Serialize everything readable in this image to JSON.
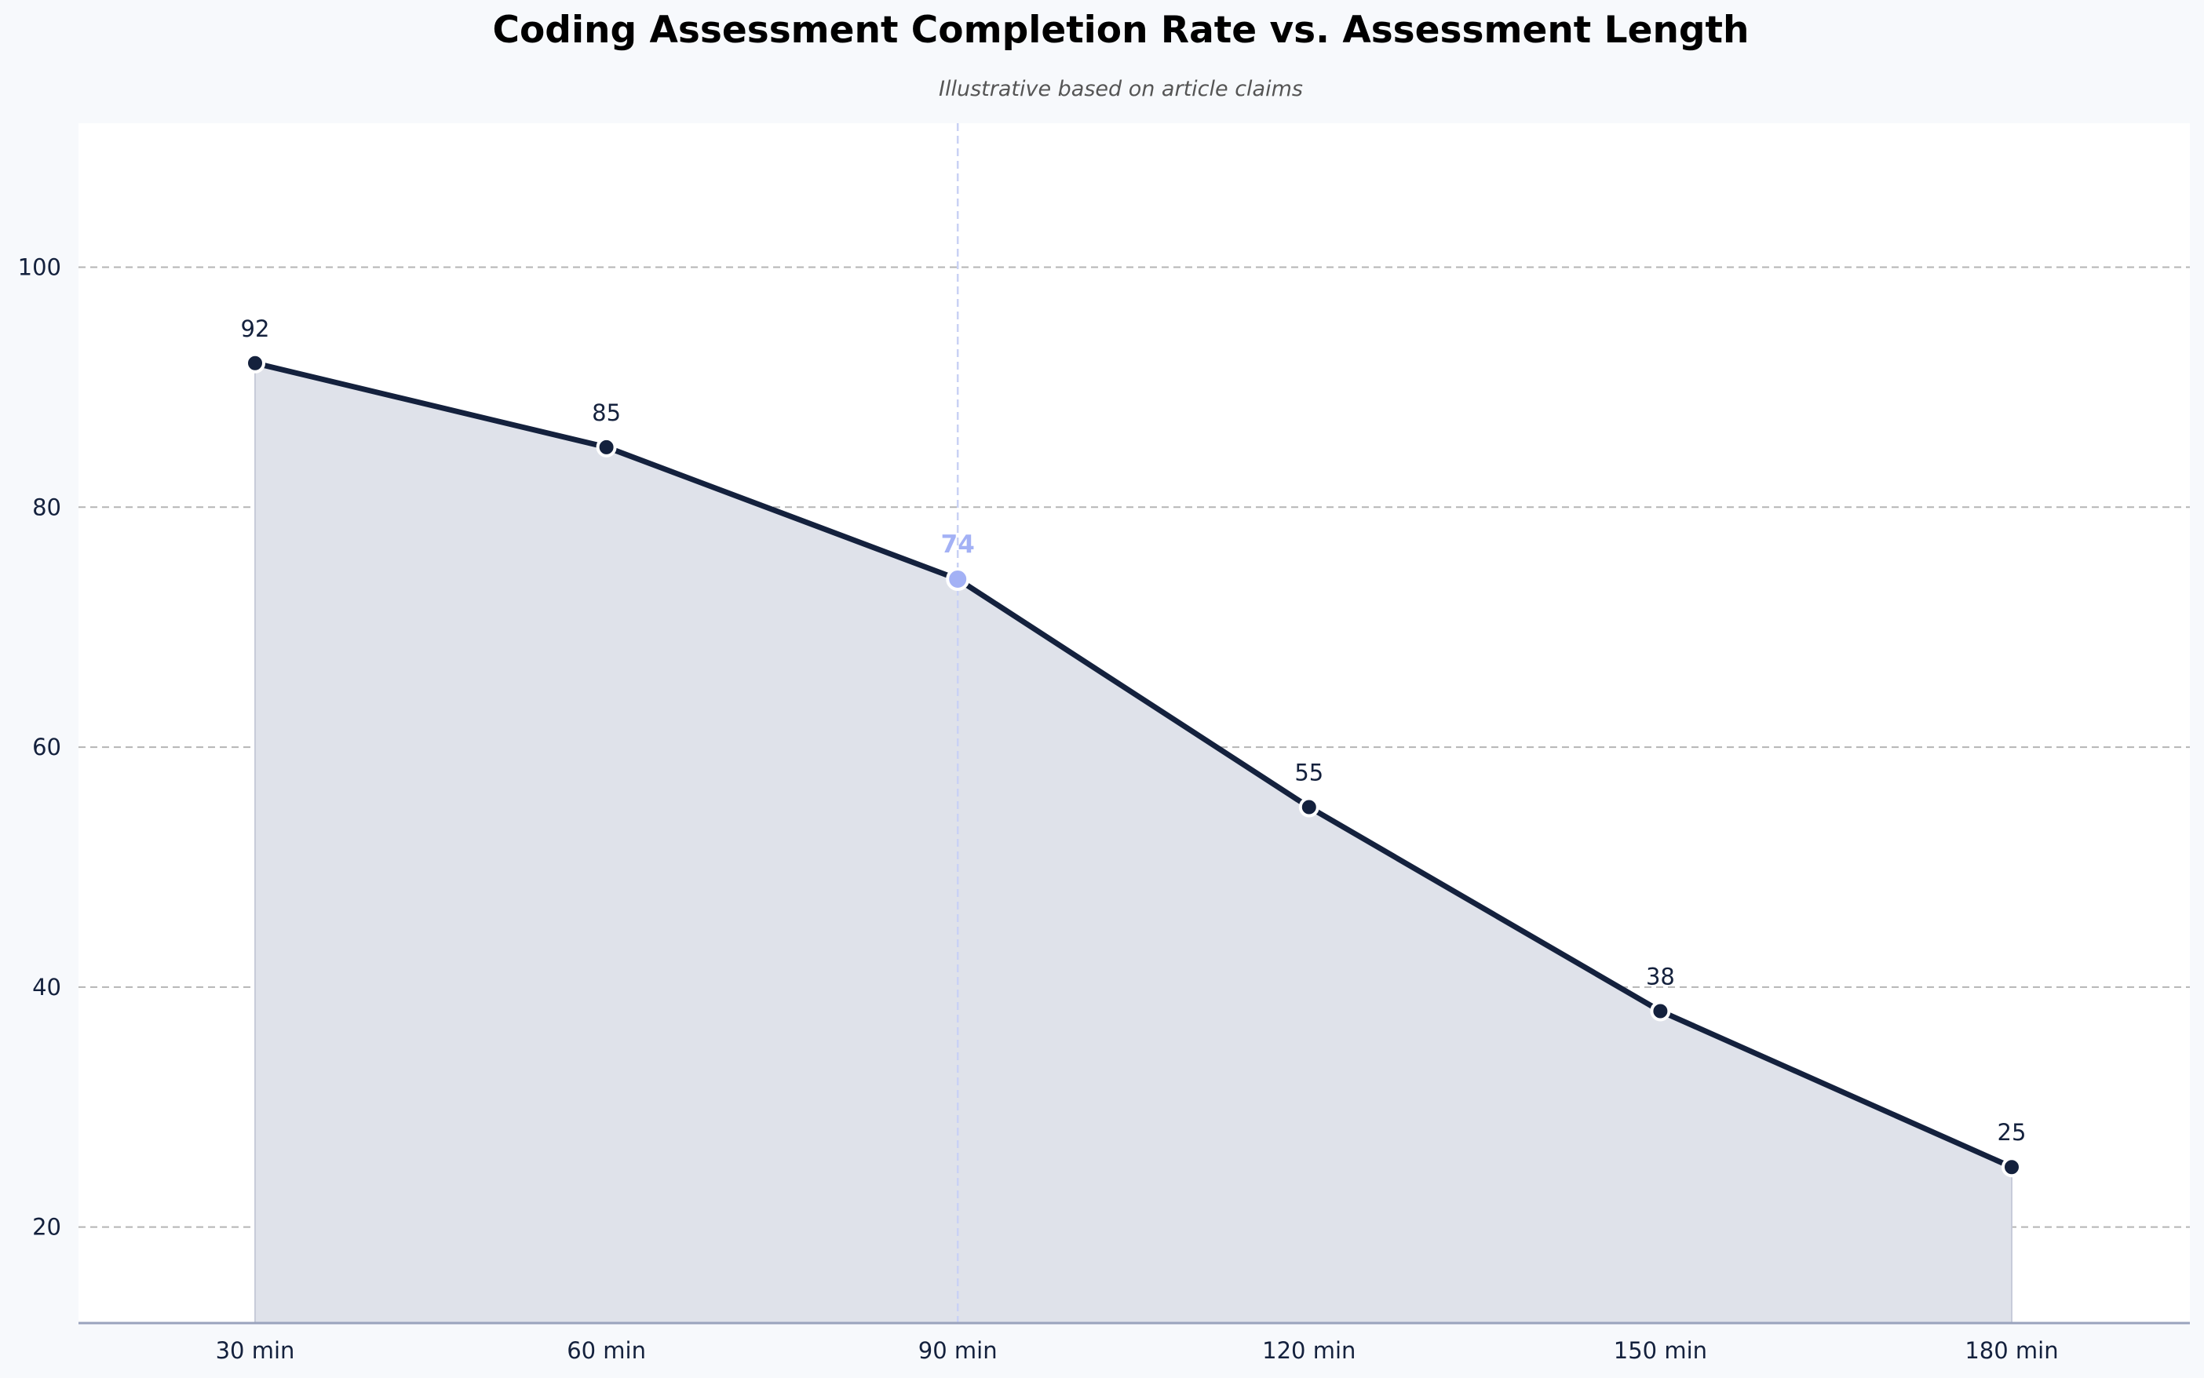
{
  "chart_data": {
    "type": "line",
    "title": "Coding Assessment Completion Rate vs. Assessment Length",
    "subtitle": "Illustrative based on article claims",
    "xlabel": "",
    "ylabel": "",
    "categories": [
      "30 min",
      "60 min",
      "90 min",
      "120 min",
      "150 min",
      "180 min"
    ],
    "series": [
      {
        "values": [
          92,
          85,
          74,
          55,
          38,
          25
        ]
      }
    ],
    "data_labels": [
      "92",
      "85",
      "74",
      "55",
      "38",
      "25"
    ],
    "ylim": [
      12,
      112
    ],
    "yticks": [
      20,
      40,
      60,
      80,
      100
    ],
    "ytick_labels": [
      "20",
      "40",
      "60",
      "80",
      "100"
    ],
    "grid": "horizontal-dashed",
    "area_fill": true,
    "highlight": {
      "category": "90 min",
      "index": 2,
      "vertical_line": true
    },
    "colors": {
      "line": "#14213d",
      "area": "#dfe2ea",
      "highlight": "#a3b1f5",
      "grid": "#b5b5b5",
      "plot_background": "#ffffff",
      "figure_background": "#f7f9fc",
      "axis": "#9aa3bd",
      "highlight_line": "#c9d1f5"
    }
  }
}
